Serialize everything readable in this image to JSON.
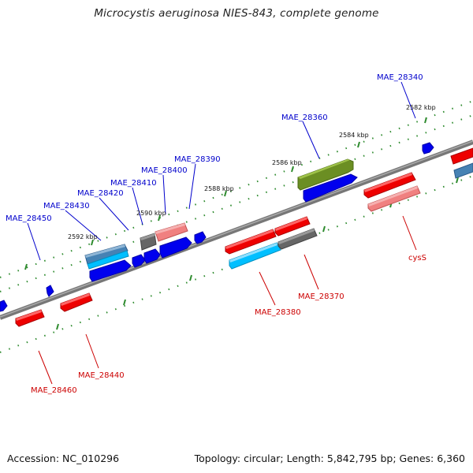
{
  "title": "Microcystis aeruginosa NIES-843, complete genome",
  "footer": {
    "accession": "Accession: NC_010296",
    "summary": "Topology: circular; Length: 5,842,795 bp; Genes: 6,360"
  },
  "colors": {
    "backbone": "#888888",
    "plus_label": "#0000cc",
    "minus_label": "#cc0000",
    "tick_dot": "#2e8b2e"
  },
  "scale_labels": [
    "2582 kbp",
    "2584 kbp",
    "2586 kbp",
    "2588 kbp",
    "2590 kbp",
    "2592 kbp"
  ],
  "upper_gene_labels": [
    "MAE_28340",
    "MAE_28360",
    "MAE_28390",
    "MAE_28400",
    "MAE_28410",
    "MAE_28420",
    "MAE_28430",
    "MAE_28450"
  ],
  "lower_gene_labels": [
    "cysS",
    "MAE_28370",
    "MAE_28380",
    "MAE_28440",
    "MAE_28460"
  ]
}
